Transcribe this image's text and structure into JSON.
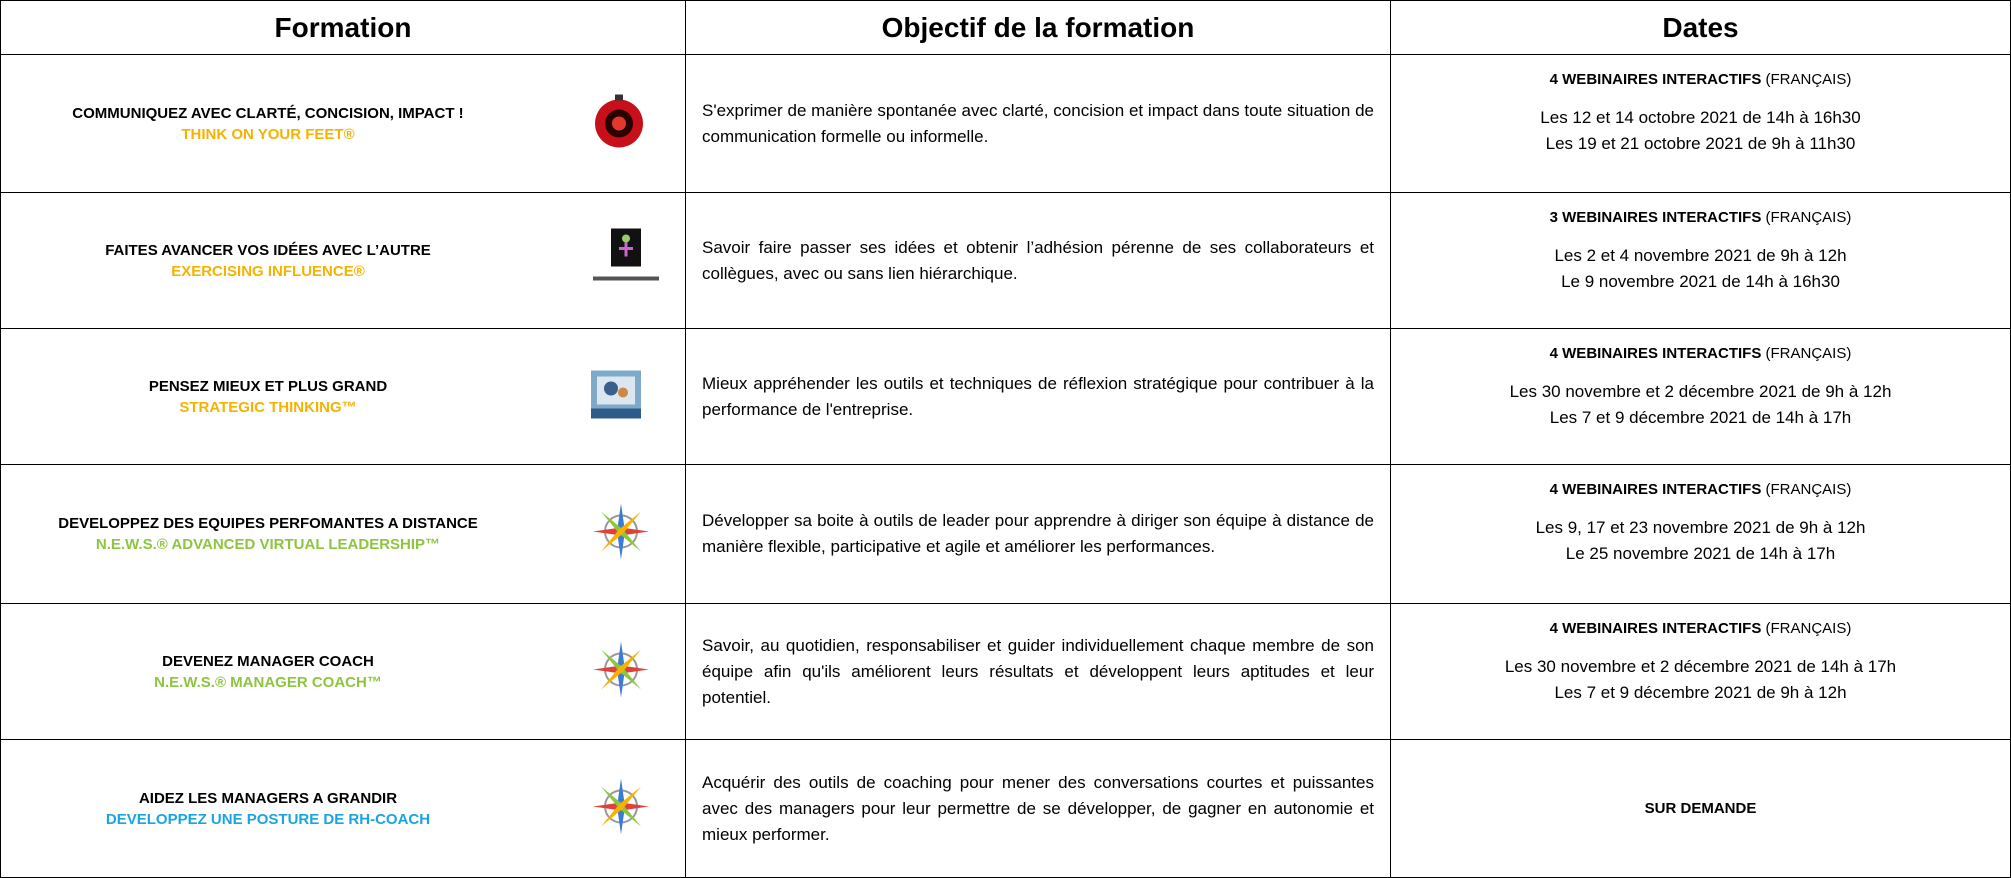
{
  "header": [
    "Formation",
    "Objectif de la formation",
    "Dates"
  ],
  "rows": [
    {
      "title": "COMMUNIQUEZ AVEC CLARTÉ, CONCISION, IMPACT !",
      "subtitle": "THINK ON YOUR FEET®",
      "objective": "S'exprimer de manière spontanée avec clarté, concision et impact dans toute situation de communication formelle ou informelle.",
      "dates": {
        "label": "4 WEBINAIRES INTERACTIFS",
        "language": "(FRANÇAIS)",
        "lines": [
          "Les 12 et 14 octobre 2021 de 14h à 16h30",
          "Les 19 et 21 octobre 2021 de 9h à 11h30"
        ]
      }
    },
    {
      "title": "FAITES AVANCER VOS IDÉES AVEC L’AUTRE",
      "subtitle": "EXERCISING INFLUENCE®",
      "objective": "Savoir faire passer ses idées et obtenir l’adhésion pérenne de ses collaborateurs et collègues, avec ou sans lien hiérarchique.",
      "dates": {
        "label": "3 WEBINAIRES INTERACTIFS",
        "language": "(FRANÇAIS)",
        "lines": [
          "Les 2 et 4 novembre 2021 de 9h à 12h",
          "Le 9 novembre 2021 de 14h à 16h30"
        ]
      }
    },
    {
      "title": "PENSEZ MIEUX ET PLUS GRAND",
      "subtitle": "STRATEGIC THINKING™",
      "objective": "Mieux appréhender les outils et techniques de réflexion stratégique pour contribuer à la performance de l'entreprise.",
      "dates": {
        "label": "4 WEBINAIRES INTERACTIFS",
        "language": "(FRANÇAIS)",
        "lines": [
          "Les 30 novembre et 2 décembre 2021 de 9h à 12h",
          "Les 7 et 9 décembre 2021 de 14h à 17h"
        ]
      }
    },
    {
      "title": "DEVELOPPEZ DES EQUIPES PERFOMANTES A DISTANCE",
      "subtitle": "N.E.W.S.® ADVANCED VIRTUAL LEADERSHIP™",
      "objective": "Développer sa boite à outils de leader pour apprendre à diriger son équipe à distance de manière flexible, participative et agile et améliorer les performances.",
      "dates": {
        "label": "4 WEBINAIRES INTERACTIFS",
        "language": "(FRANÇAIS)",
        "lines": [
          "Les 9, 17 et 23 novembre 2021 de 9h à 12h",
          "Le 25 novembre 2021 de 14h à 17h"
        ]
      }
    },
    {
      "title": "DEVENEZ MANAGER COACH",
      "subtitle": "N.E.W.S.® MANAGER COACH™",
      "objective": "Savoir, au quotidien, responsabiliser et guider individuellement chaque membre de son équipe afin qu'ils améliorent leurs résultats et développent leurs aptitudes et leur potentiel.",
      "dates": {
        "label": "4 WEBINAIRES INTERACTIFS",
        "language": "(FRANÇAIS)",
        "lines": [
          "Les 30 novembre et 2 décembre 2021 de 14h à 17h",
          "Les 7 et 9 décembre 2021 de 9h à 12h"
        ]
      }
    },
    {
      "title": "AIDEZ LES MANAGERS A GRANDIR",
      "subtitle": "DEVELOPPEZ UNE POSTURE DE RH-COACH",
      "objective": "Acquérir des outils de coaching pour mener des conversations courtes et puissantes avec des managers pour leur permettre de se développer, de gagner en autonomie et mieux performer.",
      "dates": {
        "label": "SUR DEMANDE"
      }
    }
  ]
}
